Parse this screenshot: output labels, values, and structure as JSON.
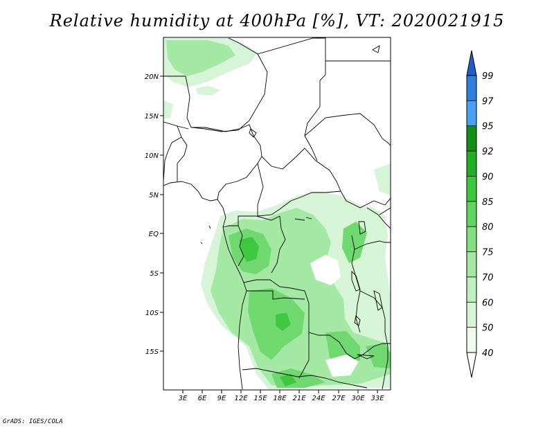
{
  "title": "Relative humidity at 400hPa [%], VT: 2020021915",
  "credit": "GrADS: IGES/COLA",
  "map": {
    "lat_labels": [
      "20N",
      "15N",
      "10N",
      "5N",
      "EQ",
      "5S",
      "10S",
      "15S"
    ],
    "lon_labels": [
      "3E",
      "6E",
      "9E",
      "12E",
      "15E",
      "18E",
      "21E",
      "24E",
      "27E",
      "30E",
      "33E"
    ]
  },
  "colorbar": {
    "levels": [
      "40",
      "50",
      "60",
      "70",
      "75",
      "80",
      "85",
      "90",
      "92",
      "95",
      "97",
      "99"
    ],
    "colors": [
      "#ffffff",
      "#eefbee",
      "#d6f5d6",
      "#bff0bf",
      "#a3e8a3",
      "#82df82",
      "#5fd65f",
      "#3dc83d",
      "#22ad22",
      "#139013",
      "#4aa0f0",
      "#2f7fe0",
      "#1f5fc8"
    ]
  },
  "shading_colors": {
    "light": "#d6f5d6",
    "mid": "#a3e8a3",
    "strong": "#6fd86f",
    "core": "#3dc83d"
  }
}
